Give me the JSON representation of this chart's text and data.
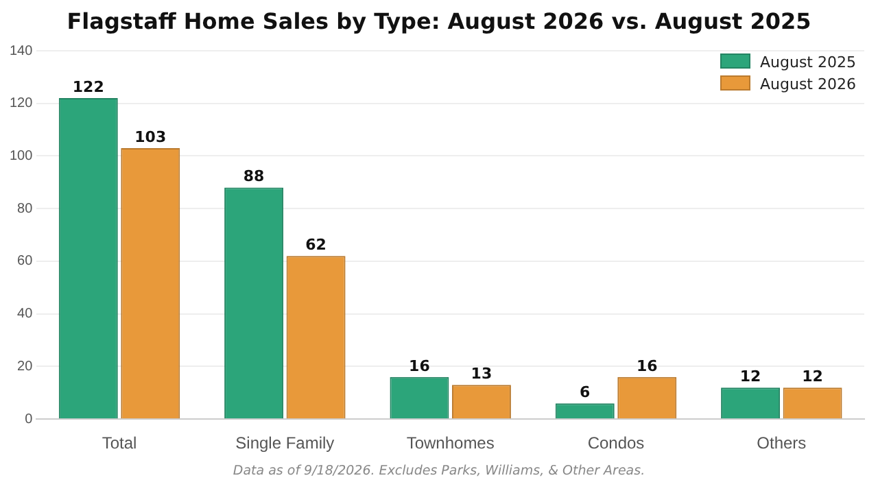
{
  "chart_data": {
    "type": "bar",
    "title": "Flagstaff Home Sales by Type: August 2026 vs. August 2025",
    "categories": [
      "Total",
      "Single Family",
      "Townhomes",
      "Condos",
      "Others"
    ],
    "series": [
      {
        "name": "August 2025",
        "color": "#2ca57a",
        "values": [
          122,
          88,
          16,
          6,
          12
        ]
      },
      {
        "name": "August 2026",
        "color": "#e8993a",
        "values": [
          103,
          62,
          13,
          16,
          12
        ]
      }
    ],
    "ylim": [
      0,
      140
    ],
    "yticks": [
      0,
      20,
      40,
      60,
      80,
      100,
      120,
      140
    ],
    "grid": "y",
    "legend": "top right",
    "data_labels": true,
    "annotations": [
      "Data as of 9/18/2026. Excludes Parks, Williams, & Other Areas."
    ]
  }
}
